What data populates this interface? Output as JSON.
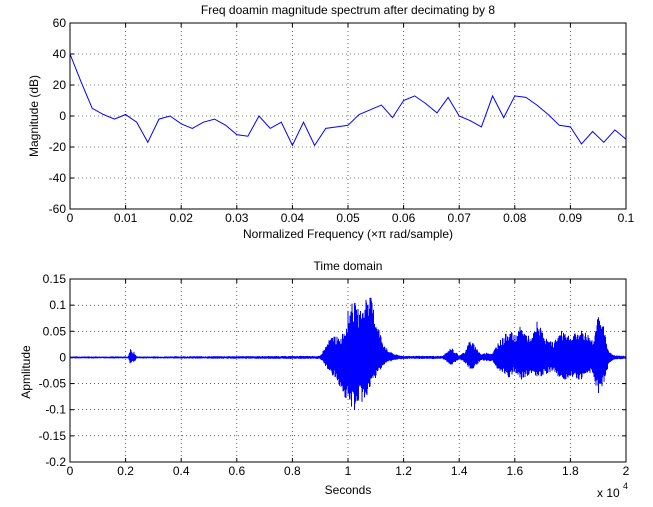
{
  "chart_data": [
    {
      "type": "line",
      "title": "Freq doamin magnitude spectrum after decimating by 8",
      "xlabel": "Normalized Frequency  (×π rad/sample)",
      "ylabel": "Magnitude (dB)",
      "xlim": [
        0,
        0.1
      ],
      "ylim": [
        -60,
        60
      ],
      "xticks": [
        0,
        0.01,
        0.02,
        0.03,
        0.04,
        0.05,
        0.06,
        0.07,
        0.08,
        0.09,
        0.1
      ],
      "xtick_labels": [
        "0",
        "0.01",
        "0.02",
        "0.03",
        "0.04",
        "0.05",
        "0.06",
        "0.07",
        "0.08",
        "0.09",
        "0.1"
      ],
      "yticks": [
        -60,
        -40,
        -20,
        0,
        20,
        40,
        60
      ],
      "ytick_labels": [
        "-60",
        "-40",
        "-20",
        "0",
        "20",
        "40",
        "60"
      ],
      "grid": true,
      "line_color": "#0000ff",
      "x": [
        0,
        0.002,
        0.004,
        0.006,
        0.008,
        0.01,
        0.012,
        0.014,
        0.016,
        0.018,
        0.02,
        0.022,
        0.024,
        0.026,
        0.028,
        0.03,
        0.032,
        0.034,
        0.036,
        0.038,
        0.04,
        0.042,
        0.044,
        0.046,
        0.048,
        0.05,
        0.052,
        0.054,
        0.056,
        0.058,
        0.06,
        0.062,
        0.064,
        0.066,
        0.068,
        0.07,
        0.072,
        0.074,
        0.076,
        0.078,
        0.08,
        0.082,
        0.084,
        0.086,
        0.088,
        0.09,
        0.092,
        0.094,
        0.096,
        0.098,
        0.1
      ],
      "y": [
        40,
        22,
        5,
        1,
        -2,
        1,
        -4,
        -17,
        -2,
        0,
        -5,
        -8,
        -4,
        -2,
        -6,
        -12,
        -13,
        0,
        -8,
        -4,
        -19,
        -4,
        -19,
        -8,
        -7,
        -6,
        1,
        4,
        7,
        -1,
        10,
        13,
        8,
        2,
        12,
        0,
        -3,
        -7,
        13,
        -1,
        13,
        12,
        7,
        1,
        -6,
        -7,
        -18,
        -10,
        -17,
        -9,
        -15
      ]
    },
    {
      "type": "line",
      "title": "Time domain",
      "xlabel": "Seconds",
      "ylabel": "Apmlitude",
      "x_multiplier": "x 10",
      "x_multiplier_exp": "4",
      "xlim": [
        0,
        2
      ],
      "ylim": [
        -0.2,
        0.15
      ],
      "xticks": [
        0,
        0.2,
        0.4,
        0.6,
        0.8,
        1,
        1.2,
        1.4,
        1.6,
        1.8,
        2
      ],
      "xtick_labels": [
        "0",
        "0.2",
        "0.4",
        "0.6",
        "0.8",
        "1",
        "1.2",
        "1.4",
        "1.6",
        "1.8",
        "2"
      ],
      "yticks": [
        -0.2,
        -0.15,
        -0.1,
        -0.05,
        0,
        0.05,
        0.1,
        0.15
      ],
      "ytick_labels": [
        "-0.2",
        "-0.15",
        "-0.1",
        "-0.05",
        "0",
        "0.05",
        "0.1",
        "0.15"
      ],
      "grid": true,
      "line_color": "#0000ff",
      "envelope": {
        "x": [
          0,
          0.21,
          0.215,
          0.22,
          0.225,
          0.23,
          0.24,
          0.9,
          0.93,
          0.95,
          0.97,
          0.99,
          1.0,
          1.02,
          1.04,
          1.06,
          1.07,
          1.08,
          1.1,
          1.12,
          1.14,
          1.17,
          1.2,
          1.24,
          1.28,
          1.34,
          1.36,
          1.37,
          1.38,
          1.4,
          1.42,
          1.44,
          1.46,
          1.48,
          1.5,
          1.52,
          1.54,
          1.56,
          1.58,
          1.6,
          1.62,
          1.64,
          1.66,
          1.68,
          1.7,
          1.72,
          1.74,
          1.76,
          1.78,
          1.8,
          1.82,
          1.84,
          1.86,
          1.88,
          1.9,
          1.92,
          1.94,
          1.96,
          2.0
        ],
        "upper": [
          0.002,
          0.002,
          0.015,
          0.018,
          0.006,
          0.012,
          0.002,
          0.003,
          0.032,
          0.045,
          0.035,
          0.06,
          0.09,
          0.11,
          0.09,
          0.1,
          0.14,
          0.12,
          0.08,
          0.04,
          0.015,
          0.006,
          0.003,
          0.003,
          0.003,
          0.003,
          0.012,
          0.02,
          0.015,
          0.003,
          0.012,
          0.035,
          0.02,
          0.006,
          0.01,
          0.008,
          0.03,
          0.04,
          0.055,
          0.04,
          0.06,
          0.048,
          0.035,
          0.07,
          0.05,
          0.032,
          0.03,
          0.048,
          0.055,
          0.04,
          0.048,
          0.052,
          0.048,
          0.035,
          0.08,
          0.06,
          0.01,
          0.004,
          0.003
        ],
        "lower": [
          -0.002,
          -0.002,
          -0.012,
          -0.015,
          -0.005,
          -0.01,
          -0.002,
          -0.003,
          -0.025,
          -0.04,
          -0.055,
          -0.08,
          -0.09,
          -0.105,
          -0.085,
          -0.09,
          -0.07,
          -0.06,
          -0.04,
          -0.02,
          -0.01,
          -0.005,
          -0.003,
          -0.003,
          -0.003,
          -0.003,
          -0.01,
          -0.015,
          -0.012,
          -0.003,
          -0.01,
          -0.025,
          -0.018,
          -0.005,
          -0.008,
          -0.007,
          -0.025,
          -0.035,
          -0.04,
          -0.03,
          -0.045,
          -0.04,
          -0.03,
          -0.04,
          -0.035,
          -0.03,
          -0.025,
          -0.04,
          -0.045,
          -0.035,
          -0.04,
          -0.045,
          -0.03,
          -0.03,
          -0.07,
          -0.05,
          -0.01,
          -0.004,
          -0.003
        ]
      }
    }
  ]
}
